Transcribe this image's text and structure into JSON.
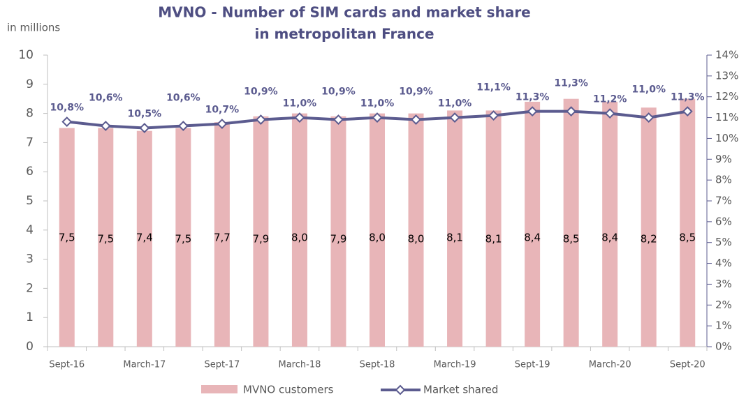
{
  "chart_data": {
    "type": "bar_line",
    "title": [
      "MVNO - Number of SIM cards and market share",
      "in metropolitan France"
    ],
    "y_label": "in millions",
    "categories": [
      "Sept-16",
      null,
      "March-17",
      null,
      "Sept-17",
      null,
      "March-18",
      null,
      "Sept-18",
      null,
      "March-19",
      null,
      "Sept-19",
      null,
      "March-20",
      null,
      "Sept-20"
    ],
    "series": [
      {
        "name": "MVNO customers",
        "color": "#e8b5b8",
        "type": "bar",
        "values": [
          7.5,
          7.5,
          7.4,
          7.5,
          7.7,
          7.9,
          8.0,
          7.9,
          8.0,
          8.0,
          8.1,
          8.1,
          8.4,
          8.5,
          8.4,
          8.2,
          8.5
        ],
        "value_labels": [
          "7,5",
          "7,5",
          "7,4",
          "7,5",
          "7,7",
          "7,9",
          "8,0",
          "7,9",
          "8,0",
          "8,0",
          "8,1",
          "8,1",
          "8,4",
          "8,5",
          "8,4",
          "8,2",
          "8,5"
        ]
      },
      {
        "name": "Market shared",
        "color": "#5b5b8f",
        "type": "line",
        "axis": "y2",
        "values": [
          10.8,
          10.6,
          10.5,
          10.6,
          10.7,
          10.9,
          11.0,
          10.9,
          11.0,
          10.9,
          11.0,
          11.1,
          11.3,
          11.3,
          11.2,
          11.0,
          11.3
        ],
        "value_labels": [
          "10,8%",
          "10,6%",
          "10,5%",
          "10,6%",
          "10,7%",
          "10,9%",
          "11,0%",
          "10,9%",
          "11,0%",
          "10,9%",
          "11,0%",
          "11,1%",
          "11,3%",
          "11,3%",
          "11,2%",
          "11,0%",
          "11,3%"
        ]
      }
    ],
    "ylim": [
      0,
      10
    ],
    "yticks": [
      0,
      1,
      2,
      3,
      4,
      5,
      6,
      7,
      8,
      9,
      10
    ],
    "y2lim": [
      0,
      14
    ],
    "y2ticks": [
      {
        "value": 0,
        "label": "0%"
      },
      {
        "value": 1,
        "label": "1%"
      },
      {
        "value": 2,
        "label": "2%"
      },
      {
        "value": 3,
        "label": "3%"
      },
      {
        "value": 4,
        "label": "4%"
      },
      {
        "value": 5,
        "label": "5%"
      },
      {
        "value": 6,
        "label": "6%"
      },
      {
        "value": 7,
        "label": "7%"
      },
      {
        "value": 8,
        "label": "8%"
      },
      {
        "value": 9,
        "label": "9%"
      },
      {
        "value": 10,
        "label": "10%"
      },
      {
        "value": 11,
        "label": "11%"
      },
      {
        "value": 12,
        "label": "12%"
      },
      {
        "value": 13,
        "label": "13%"
      },
      {
        "value": 14,
        "label": "14%"
      }
    ],
    "legend": "bottom"
  }
}
